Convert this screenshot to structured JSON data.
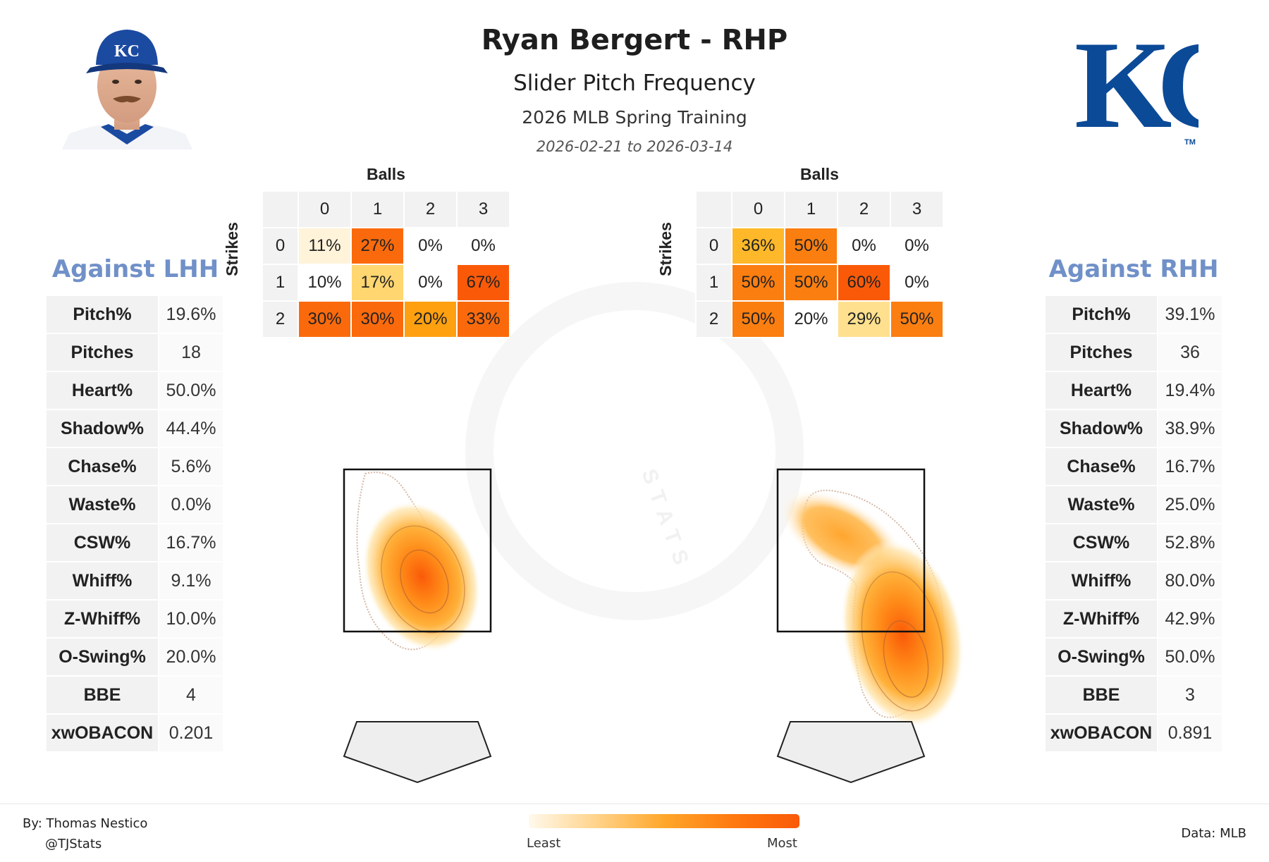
{
  "header": {
    "title": "Ryan Bergert - RHP",
    "subtitle": "Slider Pitch Frequency",
    "season": "2026 MLB Spring Training",
    "dates": "2026-02-21 to 2026-03-14"
  },
  "logo": {
    "text": "KC",
    "tm": "TM",
    "color": "#0b4a97"
  },
  "chart_data": {
    "type": "heatmap",
    "color_scale": {
      "least_label": "Least",
      "most_label": "Most",
      "colors": [
        "#fff9ec",
        "#ffd38a",
        "#ffa72b",
        "#ff7a10",
        "#fa5a08"
      ]
    },
    "lhh": {
      "title": "Against LHH",
      "stats": [
        {
          "label": "Pitch%",
          "value": "19.6%"
        },
        {
          "label": "Pitches",
          "value": "18"
        },
        {
          "label": "Heart%",
          "value": "50.0%"
        },
        {
          "label": "Shadow%",
          "value": "44.4%"
        },
        {
          "label": "Chase%",
          "value": "5.6%"
        },
        {
          "label": "Waste%",
          "value": "0.0%"
        },
        {
          "label": "CSW%",
          "value": "16.7%"
        },
        {
          "label": "Whiff%",
          "value": "9.1%"
        },
        {
          "label": "Z-Whiff%",
          "value": "10.0%"
        },
        {
          "label": "O-Swing%",
          "value": "20.0%"
        },
        {
          "label": "BBE",
          "value": "4"
        },
        {
          "label": "xwOBACON",
          "value": "0.201"
        }
      ],
      "count_matrix": {
        "balls_label": "Balls",
        "strikes_label": "Strikes",
        "balls": [
          "0",
          "1",
          "2",
          "3"
        ],
        "strikes": [
          "0",
          "1",
          "2"
        ],
        "values": [
          [
            "11%",
            "27%",
            "0%",
            "0%"
          ],
          [
            "10%",
            "17%",
            "0%",
            "67%"
          ],
          [
            "30%",
            "30%",
            "20%",
            "33%"
          ]
        ],
        "colors": [
          [
            "#fff3d9",
            "#fa6a0c",
            "#ffffff",
            "#ffffff"
          ],
          [
            "#ffffff",
            "#ffd670",
            "#ffffff",
            "#fa5a08"
          ],
          [
            "#fa6a0c",
            "#fa6a0c",
            "#ffa010",
            "#fa6a0c"
          ]
        ]
      }
    },
    "rhh": {
      "title": "Against RHH",
      "stats": [
        {
          "label": "Pitch%",
          "value": "39.1%"
        },
        {
          "label": "Pitches",
          "value": "36"
        },
        {
          "label": "Heart%",
          "value": "19.4%"
        },
        {
          "label": "Shadow%",
          "value": "38.9%"
        },
        {
          "label": "Chase%",
          "value": "16.7%"
        },
        {
          "label": "Waste%",
          "value": "25.0%"
        },
        {
          "label": "CSW%",
          "value": "52.8%"
        },
        {
          "label": "Whiff%",
          "value": "80.0%"
        },
        {
          "label": "Z-Whiff%",
          "value": "42.9%"
        },
        {
          "label": "O-Swing%",
          "value": "50.0%"
        },
        {
          "label": "BBE",
          "value": "3"
        },
        {
          "label": "xwOBACON",
          "value": "0.891"
        }
      ],
      "count_matrix": {
        "balls_label": "Balls",
        "strikes_label": "Strikes",
        "balls": [
          "0",
          "1",
          "2",
          "3"
        ],
        "strikes": [
          "0",
          "1",
          "2"
        ],
        "values": [
          [
            "36%",
            "50%",
            "0%",
            "0%"
          ],
          [
            "50%",
            "50%",
            "60%",
            "0%"
          ],
          [
            "50%",
            "20%",
            "29%",
            "50%"
          ]
        ],
        "colors": [
          [
            "#ffb829",
            "#fb7e10",
            "#ffffff",
            "#ffffff"
          ],
          [
            "#fb7e10",
            "#fb7e10",
            "#fa5a08",
            "#ffffff"
          ],
          [
            "#fb7e10",
            "#ffffff",
            "#ffe08e",
            "#fb7e10"
          ]
        ]
      }
    }
  },
  "footer": {
    "byline": "By: Thomas Nestico",
    "handle": "@TJStats",
    "data_source": "Data: MLB"
  }
}
